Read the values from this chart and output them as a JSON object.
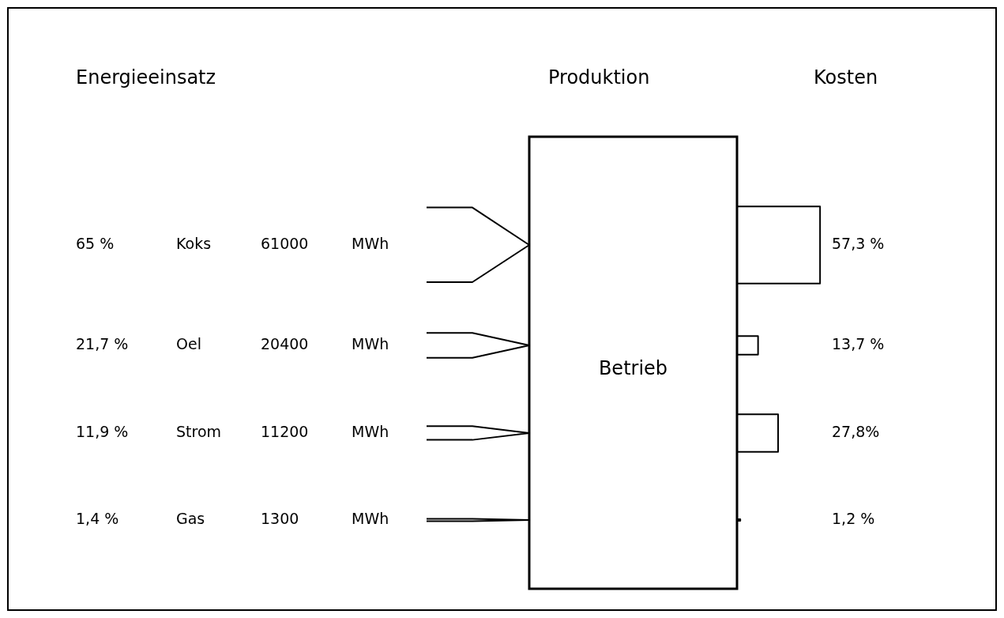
{
  "chart_data": {
    "type": "other",
    "categories": [
      "Koks",
      "Oel",
      "Strom",
      "Gas"
    ],
    "series": [
      {
        "name": "Energieeinsatz",
        "color": "#000000",
        "values": [
          65,
          21.7,
          11.9,
          1.4
        ],
        "value_labels": [
          "65 %",
          "21,7 %",
          "11,9 %",
          "1,4 %"
        ]
      },
      {
        "color": "#000000",
        "values": [
          61000,
          20400,
          11200,
          1300
        ],
        "value_labels": [
          "61000",
          "20400",
          "11200",
          "1300"
        ]
      },
      {
        "name": "Kosten",
        "color": "#000000",
        "values": [
          57.3,
          13.7,
          27.8,
          1.2
        ],
        "value_labels": [
          "57,3 %",
          "13,7 %",
          "27,8%",
          "1,2 %"
        ]
      }
    ],
    "annotations": [
      "Produktion",
      "Betrieb",
      "MWh"
    ]
  }
}
